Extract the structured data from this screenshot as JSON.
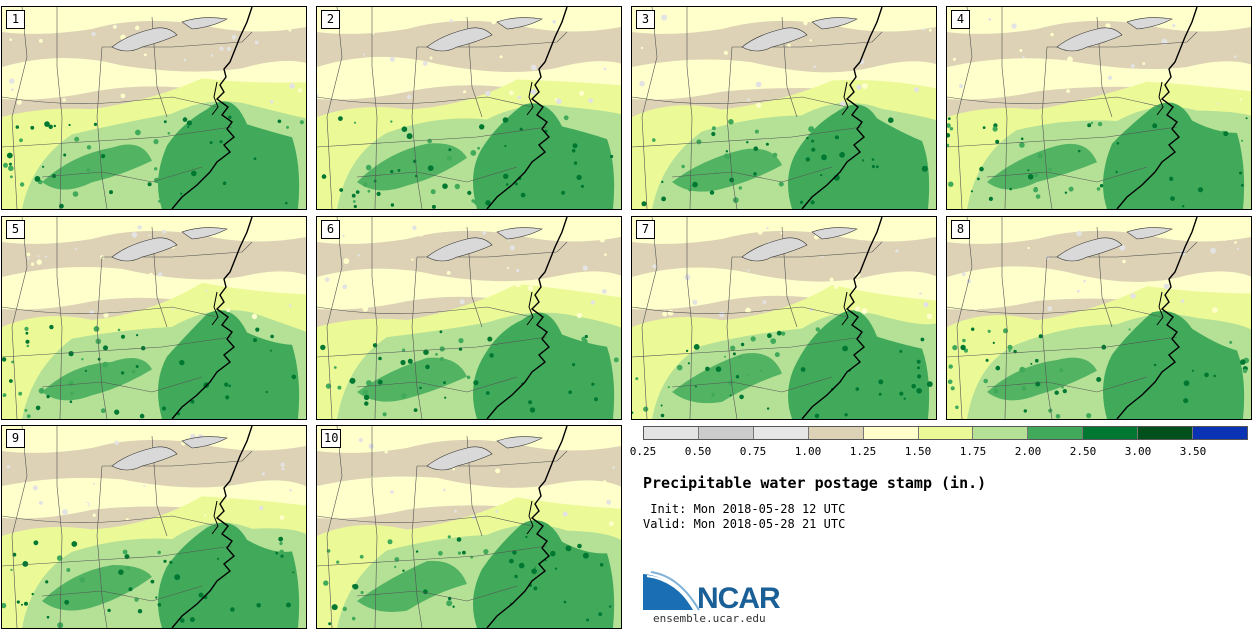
{
  "panels": [
    {
      "label": "1"
    },
    {
      "label": "2"
    },
    {
      "label": "3"
    },
    {
      "label": "4"
    },
    {
      "label": "5"
    },
    {
      "label": "6"
    },
    {
      "label": "7"
    },
    {
      "label": "8"
    },
    {
      "label": "9"
    },
    {
      "label": "10"
    }
  ],
  "legend": {
    "bins": [
      {
        "color": "#e3e3e3"
      },
      {
        "color": "#cccccc"
      },
      {
        "color": "#e6e6e6"
      },
      {
        "color": "#ddd2b5"
      },
      {
        "color": "#ffffcc"
      },
      {
        "color": "#ebfa96"
      },
      {
        "color": "#b4e196"
      },
      {
        "color": "#41aa5a"
      },
      {
        "color": "#007832"
      },
      {
        "color": "#00501e"
      },
      {
        "color": "#0a32b4"
      }
    ],
    "ticks": [
      "0.25",
      "0.50",
      "0.75",
      "1.00",
      "1.25",
      "1.50",
      "1.75",
      "2.00",
      "2.50",
      "3.00",
      "3.50"
    ]
  },
  "title": "Precipitable water postage stamp (in.)",
  "init_line": " Init: Mon 2018-05-28 12 UTC",
  "valid_line": "Valid: Mon 2018-05-28 21 UTC",
  "logo_text": "NCAR",
  "url": "ensemble.ucar.edu",
  "colors": {
    "tan": "#ddd2b5",
    "cream": "#ffffcc",
    "lightgreen": "#ebfa96",
    "midgreen": "#b4e196",
    "green": "#41aa5a",
    "darkgreen": "#007832",
    "gray": "#e3e3e3",
    "ncar_blue": "#1a5f96"
  }
}
